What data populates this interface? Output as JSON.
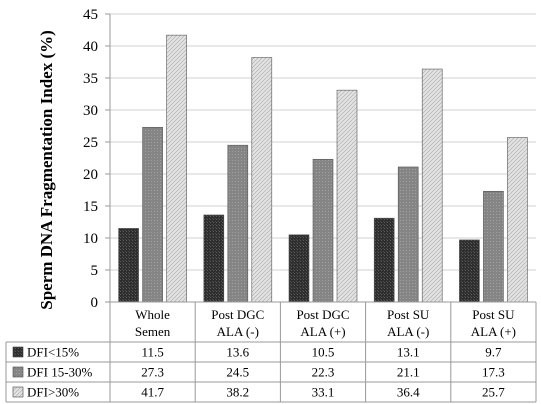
{
  "chart_data": {
    "type": "bar",
    "ylabel": "Sperm DNA Fragmentation Index (%)",
    "ylim": [
      0,
      45
    ],
    "yticks": [
      0,
      5,
      10,
      15,
      20,
      25,
      30,
      35,
      40,
      45
    ],
    "grid": true,
    "categories": [
      [
        "Whole",
        "Semen"
      ],
      [
        "Post DGC",
        "ALA (-)"
      ],
      [
        "Post DGC",
        "ALA (+)"
      ],
      [
        "Post SU",
        "ALA (-)"
      ],
      [
        "Post SU",
        "ALA (+)"
      ]
    ],
    "series": [
      {
        "name": "DFI<15%",
        "values": [
          11.5,
          13.6,
          10.5,
          13.1,
          9.7
        ],
        "labels": [
          "11.5",
          "13.6",
          "10.5",
          "13.1",
          "9.7"
        ],
        "color": "#3a3a3a",
        "pattern": "dark"
      },
      {
        "name": "DFI 15-30%",
        "values": [
          27.3,
          24.5,
          22.3,
          21.1,
          17.3
        ],
        "labels": [
          "27.3",
          "24.5",
          "22.3",
          "21.1",
          "17.3"
        ],
        "color": "#8a8a8a",
        "pattern": "mid"
      },
      {
        "name": "DFI>30%",
        "values": [
          41.7,
          38.2,
          33.1,
          36.4,
          25.7
        ],
        "labels": [
          "41.7",
          "38.2",
          "33.1",
          "36.4",
          "25.7"
        ],
        "color": "#d4d4d4",
        "pattern": "light"
      }
    ]
  }
}
